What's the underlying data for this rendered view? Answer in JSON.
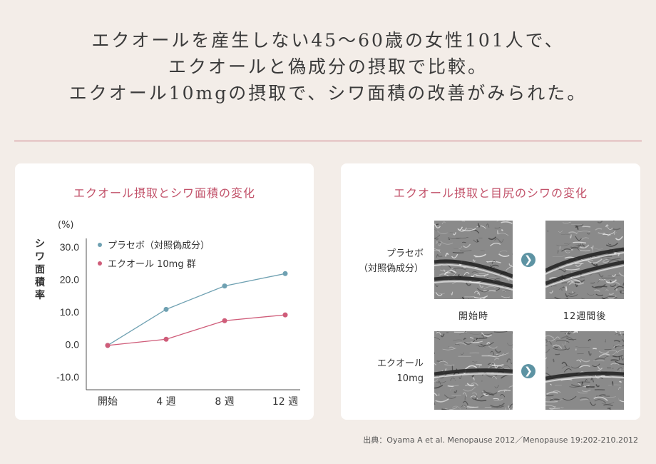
{
  "headline": {
    "lines": [
      "エクオールを産生しない45～60歳の女性101人で、",
      "エクオールと偽成分の摂取で比較。",
      "エクオール10mgの摂取で、シワ面積の改善がみられた。"
    ]
  },
  "colors": {
    "accent": "#c2526a",
    "divider": "#c9757f",
    "placebo": "#6fa1b2",
    "equol": "#cf5c79",
    "arrow": "#5d93a3"
  },
  "left_card": {
    "title": "エクオール摂取とシワ面積の変化"
  },
  "chart_data": {
    "type": "line",
    "title": "エクオール摂取とシワ面積の変化",
    "ylabel": "シワ面積率",
    "yunit": "(%)",
    "categories": [
      "開始",
      "4 週",
      "8 週",
      "12 週"
    ],
    "ylim": [
      -10,
      30
    ],
    "yticks": [
      "30.0",
      "20.0",
      "10.0",
      "0.0",
      "-10.0"
    ],
    "ytick_values": [
      30,
      20,
      10,
      0,
      -10
    ],
    "legend_position": "top-left",
    "grid": false,
    "series": [
      {
        "name": "プラセボ（対照偽成分）",
        "color": "#6fa1b2",
        "values": [
          -0.3,
          10.8,
          18.0,
          21.8
        ]
      },
      {
        "name": "エクオール 10mg 群",
        "color": "#cf5c79",
        "values": [
          -0.3,
          1.6,
          7.3,
          9.1
        ]
      }
    ]
  },
  "right_card": {
    "title": "エクオール摂取と目尻のシワの変化",
    "rows": [
      {
        "label_lines": [
          "プラセボ",
          "（対照偽成分）"
        ]
      },
      {
        "label_lines": [
          "エクオール",
          "10mg"
        ]
      }
    ],
    "captions": {
      "start": "開始時",
      "after": "12週間後"
    },
    "arrow_icon": "chevron-right-icon"
  },
  "source": "出典：Oyama A et al. Menopause 2012／Menopause 19:202-210.2012"
}
